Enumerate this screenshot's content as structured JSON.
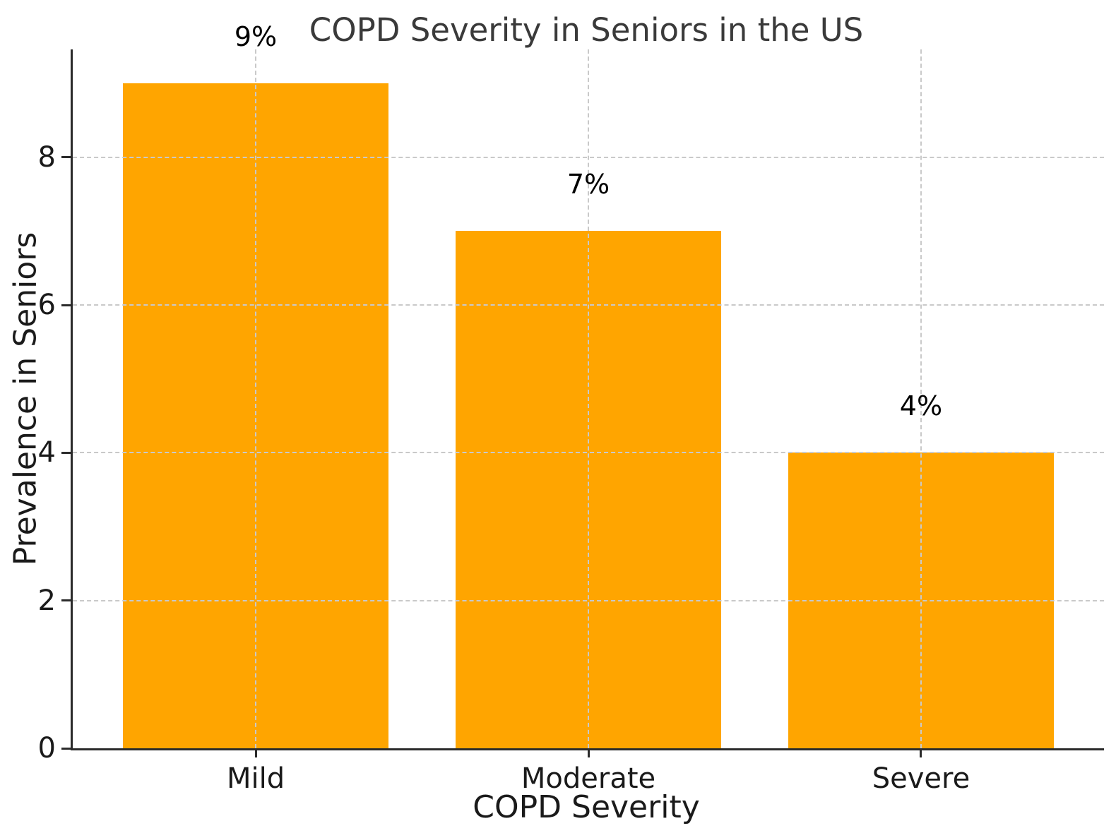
{
  "chart_data": {
    "type": "bar",
    "title": "COPD Severity in Seniors in the US",
    "xlabel": "COPD Severity",
    "ylabel": "Prevalence in Seniors",
    "categories": [
      "Mild",
      "Moderate",
      "Severe"
    ],
    "values": [
      9,
      7,
      4
    ],
    "bar_labels": [
      "9%",
      "7%",
      "4%"
    ],
    "yticks": [
      0,
      2,
      4,
      6,
      8
    ],
    "ylim": [
      0,
      9.46
    ],
    "grid": "dashed gridlines on both axes, drawn over bars",
    "legend_position": "none",
    "colors": {
      "bar": "#FFA500",
      "grid": "#c9c9c9",
      "spine": "#2b2b2b",
      "title_text": "#3a3a3a",
      "tick_text": "#1a1a1a",
      "bar_label_text": "#000000"
    }
  }
}
